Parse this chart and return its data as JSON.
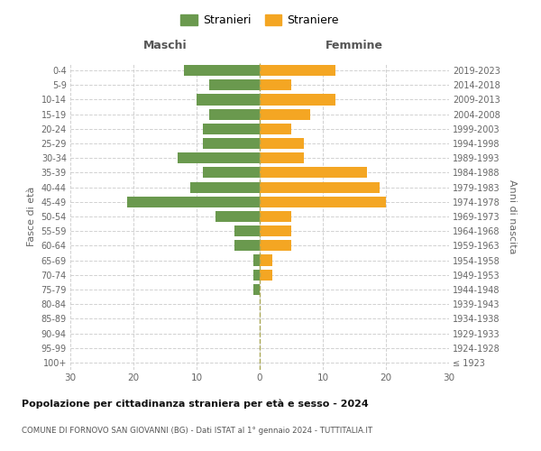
{
  "age_groups": [
    "100+",
    "95-99",
    "90-94",
    "85-89",
    "80-84",
    "75-79",
    "70-74",
    "65-69",
    "60-64",
    "55-59",
    "50-54",
    "45-49",
    "40-44",
    "35-39",
    "30-34",
    "25-29",
    "20-24",
    "15-19",
    "10-14",
    "5-9",
    "0-4"
  ],
  "birth_years": [
    "≤ 1923",
    "1924-1928",
    "1929-1933",
    "1934-1938",
    "1939-1943",
    "1944-1948",
    "1949-1953",
    "1954-1958",
    "1959-1963",
    "1964-1968",
    "1969-1973",
    "1974-1978",
    "1979-1983",
    "1984-1988",
    "1989-1993",
    "1994-1998",
    "1999-2003",
    "2004-2008",
    "2009-2013",
    "2014-2018",
    "2019-2023"
  ],
  "maschi": [
    0,
    0,
    0,
    0,
    0,
    1,
    1,
    1,
    4,
    4,
    7,
    21,
    11,
    9,
    13,
    9,
    9,
    8,
    10,
    8,
    12
  ],
  "femmine": [
    0,
    0,
    0,
    0,
    0,
    0,
    2,
    2,
    5,
    5,
    5,
    20,
    19,
    17,
    7,
    7,
    5,
    8,
    12,
    5,
    12
  ],
  "maschi_color": "#6a994e",
  "femmine_color": "#f4a623",
  "title": "Popolazione per cittadinanza straniera per età e sesso - 2024",
  "subtitle": "COMUNE DI FORNOVO SAN GIOVANNI (BG) - Dati ISTAT al 1° gennaio 2024 - TUTTITALIA.IT",
  "ylabel_left": "Fasce di età",
  "ylabel_right": "Anni di nascita",
  "xlabel_left": "Maschi",
  "xlabel_right": "Femmine",
  "legend_stranieri": "Stranieri",
  "legend_straniere": "Straniere",
  "xlim": 30,
  "background_color": "#ffffff",
  "grid_color": "#cccccc"
}
